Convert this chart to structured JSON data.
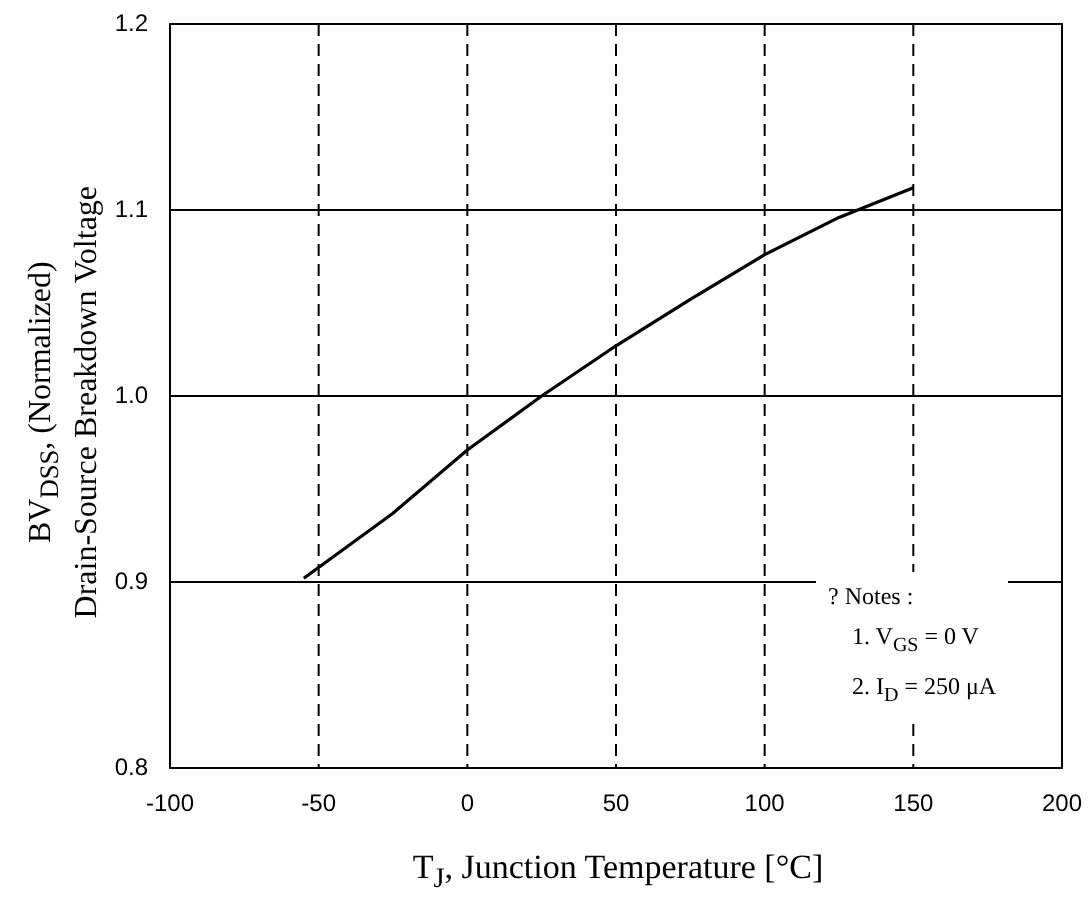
{
  "chart_data": {
    "type": "line",
    "xlabel": "T$_{J}$, Junction Temperature [°C]",
    "ylabel": [
      "BV$_{DSS}$, (Normalized)",
      "Drain-Source Breakdown Voltage"
    ],
    "x": [
      -55,
      -25,
      0,
      25,
      50,
      75,
      100,
      125,
      150
    ],
    "series": [
      {
        "color": "#000000",
        "values": [
          0.902,
          0.937,
          0.971,
          1.0,
          1.027,
          1.052,
          1.076,
          1.096,
          1.112
        ]
      }
    ],
    "xlim": [
      -100,
      200
    ],
    "xticks": [
      -100,
      -50,
      0,
      50,
      100,
      150,
      200
    ],
    "ylim": [
      0.8,
      1.2
    ],
    "yticks": [
      0.8,
      0.9,
      {
        "value": 1.0,
        "label": "1.0"
      },
      1.1,
      1.2
    ],
    "grid": true,
    "marker": "none",
    "line_style": "solid",
    "legend": false,
    "annotations": [
      "? Notes :",
      "1. V$_{GS}$ = 0 V",
      "2. I$_{D}$ = 250 μA"
    ]
  }
}
